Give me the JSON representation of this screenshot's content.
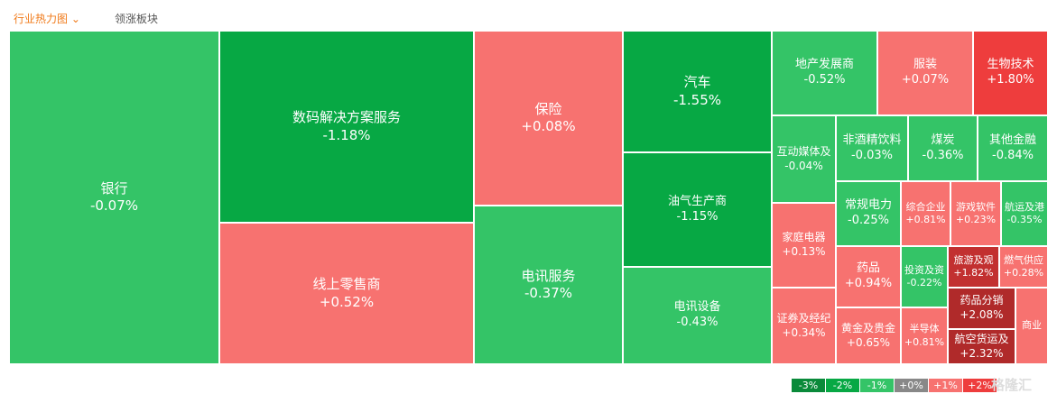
{
  "tabs": [
    "行业热力图",
    "领涨板块"
  ],
  "tiles": [
    {
      "name": "银行",
      "change": "-0.07%",
      "color": "#34c467"
    },
    {
      "name": "数码解决方案服务",
      "change": "-1.18%",
      "color": "#07a844"
    },
    {
      "name": "线上零售商",
      "change": "+0.52%",
      "color": "#f77270"
    },
    {
      "name": "保险",
      "change": "+0.08%",
      "color": "#f77270"
    },
    {
      "name": "电讯服务",
      "change": "-0.37%",
      "color": "#34c467"
    },
    {
      "name": "汽车",
      "change": "-1.55%",
      "color": "#07a844"
    },
    {
      "name": "油气生产商",
      "change": "-1.15%",
      "color": "#07a844"
    },
    {
      "name": "电讯设备",
      "change": "-0.43%",
      "color": "#34c467"
    },
    {
      "name": "地产发展商",
      "change": "-0.52%",
      "color": "#34c467"
    },
    {
      "name": "服装",
      "change": "+0.07%",
      "color": "#f77270"
    },
    {
      "name": "生物技术",
      "change": "+1.80%",
      "color": "#ee3d3d"
    },
    {
      "name": "互动媒体及",
      "change": "-0.04%",
      "color": "#34c467"
    },
    {
      "name": "非酒精饮料",
      "change": "-0.03%",
      "color": "#34c467"
    },
    {
      "name": "煤炭",
      "change": "-0.36%",
      "color": "#34c467"
    },
    {
      "name": "其他金融",
      "change": "-0.84%",
      "color": "#34c467"
    },
    {
      "name": "家庭电器",
      "change": "+0.13%",
      "color": "#f77270"
    },
    {
      "name": "证券及经纪",
      "change": "+0.34%",
      "color": "#f77270"
    },
    {
      "name": "常规电力",
      "change": "-0.25%",
      "color": "#34c467"
    },
    {
      "name": "药品",
      "change": "+0.94%",
      "color": "#f77270"
    },
    {
      "name": "黄金及贵金",
      "change": "+0.65%",
      "color": "#f77270"
    },
    {
      "name": "综合企业",
      "change": "+0.81%",
      "color": "#f77270"
    },
    {
      "name": "游戏软件",
      "change": "+0.23%",
      "color": "#f77270"
    },
    {
      "name": "航运及港",
      "change": "-0.35%",
      "color": "#34c467"
    },
    {
      "name": "投资及资",
      "change": "-0.22%",
      "color": "#34c467"
    },
    {
      "name": "旅游及观",
      "change": "+1.82%",
      "color": "#c23030"
    },
    {
      "name": "燃气供应",
      "change": "+0.28%",
      "color": "#f77270"
    },
    {
      "name": "药品分销",
      "change": "+2.08%",
      "color": "#b02a2a"
    },
    {
      "name": "航空货运及",
      "change": "+2.32%",
      "color": "#b02a2a"
    },
    {
      "name": "半导体",
      "change": "+0.81%",
      "color": "#f77270"
    },
    {
      "name": "商业",
      "color": "#f77270"
    }
  ],
  "legend": [
    {
      "label": "-3%",
      "color": "#0a8a3a"
    },
    {
      "label": "-2%",
      "color": "#07a844"
    },
    {
      "label": "-1%",
      "color": "#34c467"
    },
    {
      "label": "+0%",
      "color": "#888888"
    },
    {
      "label": "+1%",
      "color": "#f77270"
    },
    {
      "label": "+2%",
      "color": "#ee3d3d"
    }
  ],
  "watermark": "格隆汇"
}
